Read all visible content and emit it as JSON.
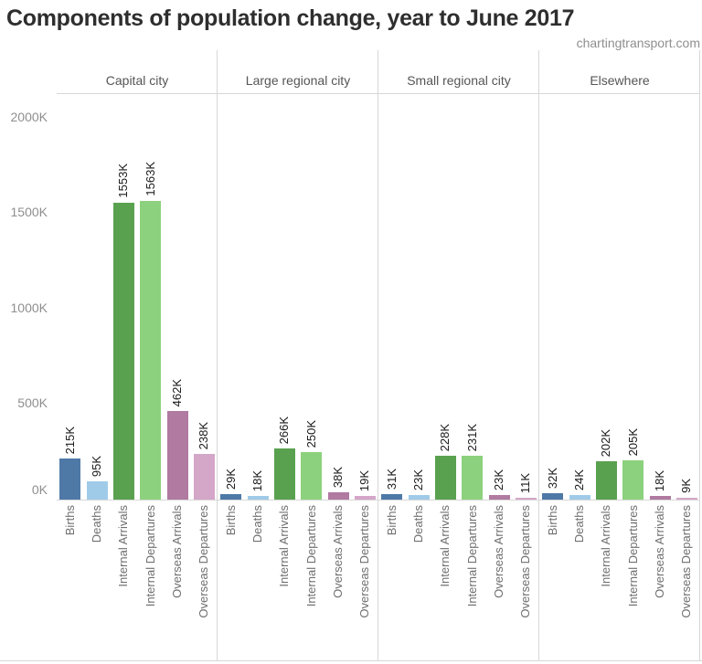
{
  "chart_data": {
    "type": "bar",
    "title": "Components of population change, year to June 2017",
    "watermark": "chartingtransport.com",
    "unit": "K",
    "grid": false,
    "legend": false,
    "categories": [
      "Births",
      "Deaths",
      "Internal Arrivals",
      "Internal Departures",
      "Overseas Arrivals",
      "Overseas Departures"
    ],
    "category_colors": [
      "#4e79a7",
      "#a0cbe8",
      "#59a14f",
      "#8cd17d",
      "#b07aa1",
      "#d4a6c8"
    ],
    "panels": [
      {
        "name": "Capital city",
        "values": [
          215,
          95,
          1553,
          1563,
          462,
          238
        ],
        "labels": [
          "215K",
          "95K",
          "1553K",
          "1563K",
          "462K",
          "238K"
        ]
      },
      {
        "name": "Large regional city",
        "values": [
          29,
          18,
          266,
          250,
          38,
          19
        ],
        "labels": [
          "29K",
          "18K",
          "266K",
          "250K",
          "38K",
          "19K"
        ]
      },
      {
        "name": "Small regional city",
        "values": [
          31,
          23,
          228,
          231,
          23,
          11
        ],
        "labels": [
          "31K",
          "23K",
          "228K",
          "231K",
          "23K",
          "11K"
        ]
      },
      {
        "name": "Elsewhere",
        "values": [
          32,
          24,
          202,
          205,
          18,
          9
        ],
        "labels": [
          "32K",
          "24K",
          "202K",
          "205K",
          "18K",
          "9K"
        ]
      }
    ],
    "y_axis": {
      "ylim": [
        0,
        2140
      ],
      "ticks": [
        {
          "label": "2000K",
          "value": 2000
        },
        {
          "label": "1500K",
          "value": 1500
        },
        {
          "label": "1000K",
          "value": 1000
        },
        {
          "label": "500K",
          "value": 500
        },
        {
          "label": "0K",
          "value": 0
        }
      ]
    }
  }
}
